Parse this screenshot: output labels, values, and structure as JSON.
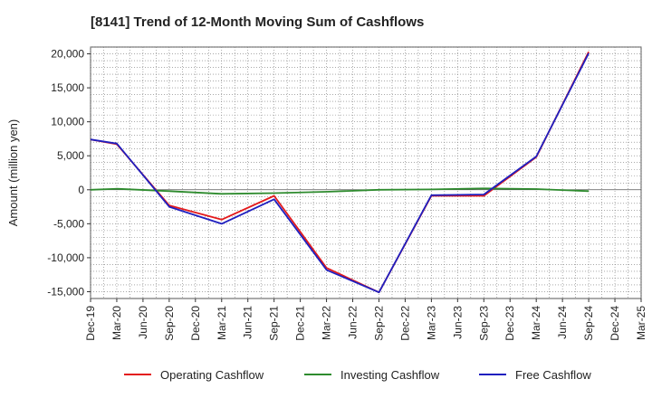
{
  "chart_data": {
    "type": "line",
    "title": "[8141]  Trend of 12-Month Moving Sum of Cashflows",
    "xlabel": "",
    "ylabel": "Amount (million yen)",
    "ylim": [
      -16000,
      21000
    ],
    "yticks": [
      -15000,
      -10000,
      -5000,
      0,
      5000,
      10000,
      15000,
      20000
    ],
    "ytick_labels": [
      "-15,000",
      "-10,000",
      "-5,000",
      "0",
      "5,000",
      "10,000",
      "15,000",
      "20,000"
    ],
    "categories": [
      "Dec-19",
      "Mar-20",
      "Jun-20",
      "Sep-20",
      "Dec-20",
      "Mar-21",
      "Jun-21",
      "Sep-21",
      "Dec-21",
      "Mar-22",
      "Jun-22",
      "Sep-22",
      "Dec-22",
      "Mar-23",
      "Jun-23",
      "Sep-23",
      "Dec-23",
      "Mar-24",
      "Jun-24",
      "Sep-24",
      "Dec-24",
      "Mar-25"
    ],
    "grid": true,
    "legend_position": "bottom",
    "series": [
      {
        "name": "Operating Cashflow",
        "color": "#e31a1c",
        "values": [
          7400,
          6700,
          null,
          -2300,
          null,
          -4400,
          null,
          -900,
          null,
          -11500,
          null,
          -15100,
          null,
          -900,
          null,
          -900,
          null,
          4800,
          null,
          20300,
          null,
          null
        ]
      },
      {
        "name": "Investing Cashflow",
        "color": "#2e8b2e",
        "values": [
          0,
          150,
          null,
          -200,
          null,
          -600,
          null,
          -500,
          null,
          -300,
          null,
          0,
          null,
          50,
          null,
          200,
          null,
          100,
          null,
          -200,
          null,
          null
        ]
      },
      {
        "name": "Free Cashflow",
        "color": "#1f1fbf",
        "values": [
          7400,
          6800,
          null,
          -2500,
          null,
          -5000,
          null,
          -1400,
          null,
          -11800,
          null,
          -15100,
          null,
          -800,
          null,
          -700,
          null,
          4900,
          null,
          20100,
          null,
          null
        ]
      }
    ]
  }
}
